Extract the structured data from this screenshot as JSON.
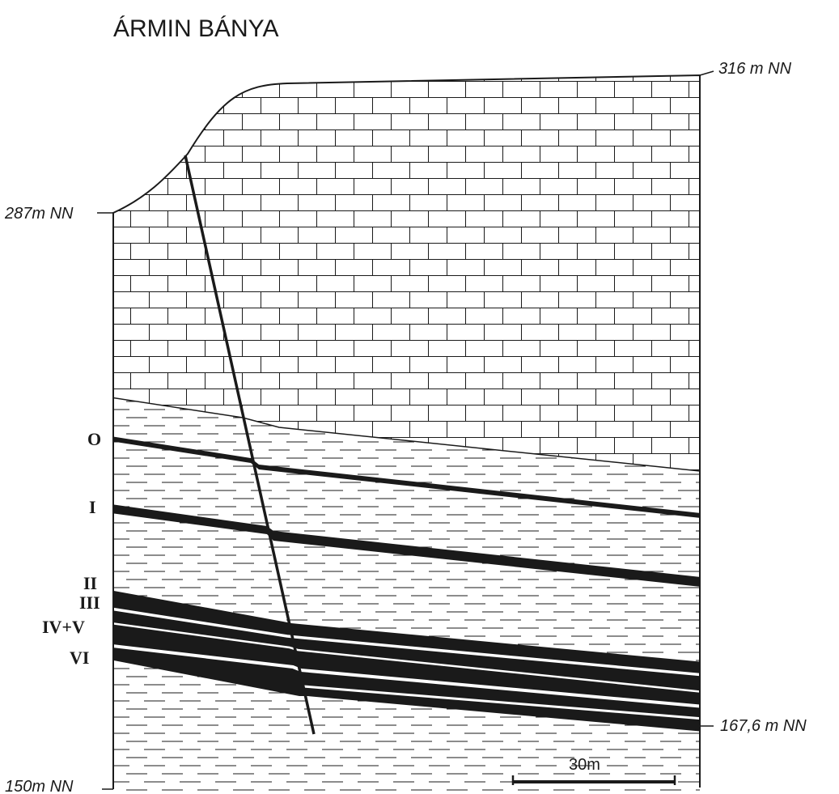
{
  "title": "ÁRMIN BÁNYA",
  "elevations": {
    "top_right": "316 m NN",
    "top_left": "287m NN",
    "bottom_right": "167,6 m NN",
    "bottom_left": "150m NN"
  },
  "seams": [
    {
      "label": "O"
    },
    {
      "label": "I"
    },
    {
      "label": "II"
    },
    {
      "label": "III"
    },
    {
      "label": "IV+V"
    },
    {
      "label": "VI"
    }
  ],
  "scale_bar": {
    "label": "30m"
  },
  "legend_patterns": [
    "limestone-brick",
    "marl-dashed",
    "coal-seam-solid"
  ],
  "colors": {
    "ink": "#1a1a1a",
    "paper": "#ffffff"
  }
}
